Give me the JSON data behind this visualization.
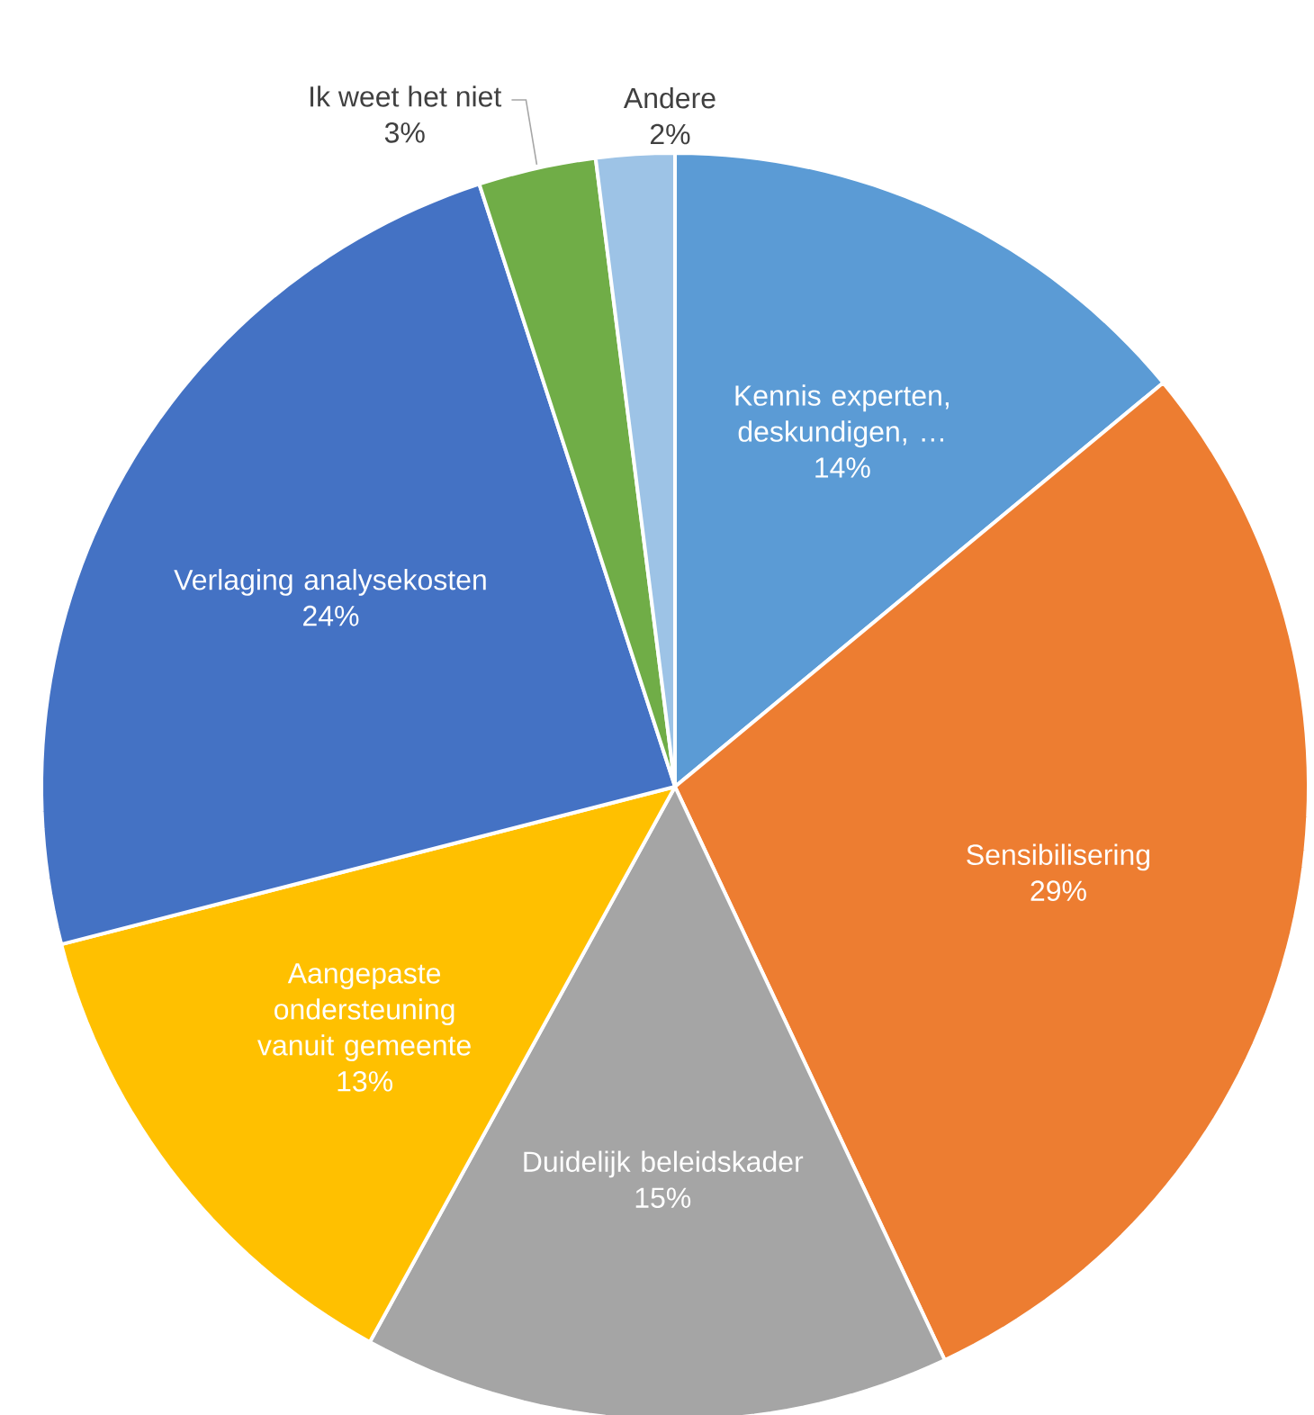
{
  "chart_data": {
    "type": "pie",
    "categories": [
      "Kennis experten, deskundigen, …",
      "Sensibilisering",
      "Duidelijk beleidskader",
      "Aangepaste ondersteuning vanuit gemeente",
      "Verlaging analysekosten",
      "Ik weet het niet",
      "Andere"
    ],
    "values": [
      14,
      29,
      15,
      13,
      24,
      3,
      2
    ],
    "value_labels": [
      "14%",
      "29%",
      "15%",
      "13%",
      "24%",
      "3%",
      "2%"
    ],
    "colors": [
      "#5b9bd5",
      "#ed7d31",
      "#a5a5a5",
      "#ffc000",
      "#4472c4",
      "#70ad47",
      "#9dc3e6"
    ]
  }
}
